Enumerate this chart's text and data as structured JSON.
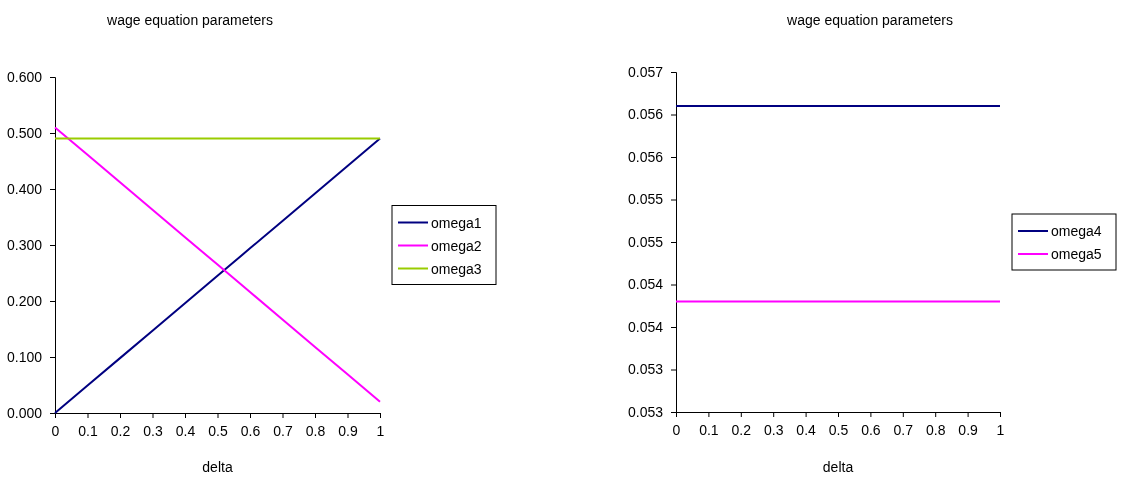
{
  "chart_data": [
    {
      "type": "line",
      "title": "wage equation parameters",
      "xlabel": "delta",
      "x": [
        0,
        0.1,
        0.2,
        0.3,
        0.4,
        0.5,
        0.6,
        0.7,
        0.8,
        0.9,
        1
      ],
      "series": [
        {
          "name": "omega1",
          "color": "#000080",
          "values": [
            0,
            0.049,
            0.098,
            0.147,
            0.196,
            0.245,
            0.294,
            0.343,
            0.392,
            0.441,
            0.49
          ]
        },
        {
          "name": "omega2",
          "color": "#ff00ff",
          "values": [
            0.51,
            0.461,
            0.412,
            0.363,
            0.314,
            0.265,
            0.216,
            0.167,
            0.118,
            0.069,
            0.02
          ]
        },
        {
          "name": "omega3",
          "color": "#99cc00",
          "values": [
            0.49,
            0.49,
            0.49,
            0.49,
            0.49,
            0.49,
            0.49,
            0.49,
            0.49,
            0.49,
            0.49
          ]
        }
      ],
      "xlim": [
        0,
        1
      ],
      "xticks": [
        0,
        0.1,
        0.2,
        0.3,
        0.4,
        0.5,
        0.6,
        0.7,
        0.8,
        0.9,
        1
      ],
      "ylim": [
        0,
        0.6
      ],
      "yticks": [
        {
          "value": 0,
          "label": "0.000"
        },
        {
          "value": 0.1,
          "label": "0.100"
        },
        {
          "value": 0.2,
          "label": "0.200"
        },
        {
          "value": 0.3,
          "label": "0.300"
        },
        {
          "value": 0.4,
          "label": "0.400"
        },
        {
          "value": 0.5,
          "label": "0.500"
        },
        {
          "value": 0.6,
          "label": "0.600"
        }
      ],
      "grid": false,
      "legend": "right",
      "marker": "none",
      "line_style": "solid"
    },
    {
      "type": "line",
      "title": "wage equation parameters",
      "xlabel": "delta",
      "x": [
        0,
        0.1,
        0.2,
        0.3,
        0.4,
        0.5,
        0.6,
        0.7,
        0.8,
        0.9,
        1
      ],
      "series": [
        {
          "name": "omega4",
          "color": "#000080",
          "values": [
            0.0561,
            0.0561,
            0.0561,
            0.0561,
            0.0561,
            0.0561,
            0.0561,
            0.0561,
            0.0561,
            0.0561,
            0.0561
          ]
        },
        {
          "name": "omega5",
          "color": "#ff00ff",
          "values": [
            0.0538,
            0.0538,
            0.0538,
            0.0538,
            0.0538,
            0.0538,
            0.0538,
            0.0538,
            0.0538,
            0.0538,
            0.0538
          ]
        }
      ],
      "xlim": [
        0,
        1
      ],
      "xticks": [
        0,
        0.1,
        0.2,
        0.3,
        0.4,
        0.5,
        0.6,
        0.7,
        0.8,
        0.9,
        1
      ],
      "ylim": [
        0.0525,
        0.0565
      ],
      "yticks": [
        {
          "value": 0.0525,
          "label": "0.053"
        },
        {
          "value": 0.053,
          "label": "0.053"
        },
        {
          "value": 0.0535,
          "label": "0.054"
        },
        {
          "value": 0.054,
          "label": "0.054"
        },
        {
          "value": 0.0545,
          "label": "0.055"
        },
        {
          "value": 0.055,
          "label": "0.055"
        },
        {
          "value": 0.0555,
          "label": "0.056"
        },
        {
          "value": 0.056,
          "label": "0.056"
        },
        {
          "value": 0.0565,
          "label": "0.057"
        }
      ],
      "grid": false,
      "legend": "right",
      "marker": "none",
      "line_style": "solid"
    }
  ]
}
